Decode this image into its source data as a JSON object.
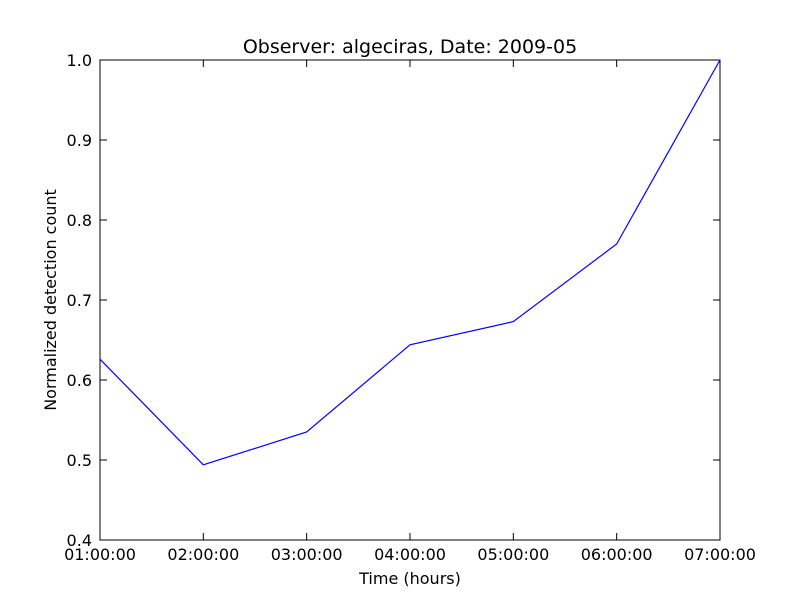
{
  "chart_data": {
    "type": "line",
    "title": "Observer: algeciras, Date: 2009-05",
    "xlabel": "Time (hours)",
    "ylabel": "Normalized detection count",
    "x": [
      "01:00:00",
      "02:00:00",
      "03:00:00",
      "04:00:00",
      "05:00:00",
      "06:00:00",
      "07:00:00"
    ],
    "series": [
      {
        "values": [
          0.626,
          0.494,
          0.535,
          0.644,
          0.673,
          0.77,
          1.0
        ],
        "color": "#0000ff"
      }
    ],
    "ylim": [
      0.4,
      1.0
    ],
    "yticks": [
      "0.4",
      "0.5",
      "0.6",
      "0.7",
      "0.8",
      "0.9",
      "1.0"
    ],
    "grid": false,
    "legend": "none"
  }
}
